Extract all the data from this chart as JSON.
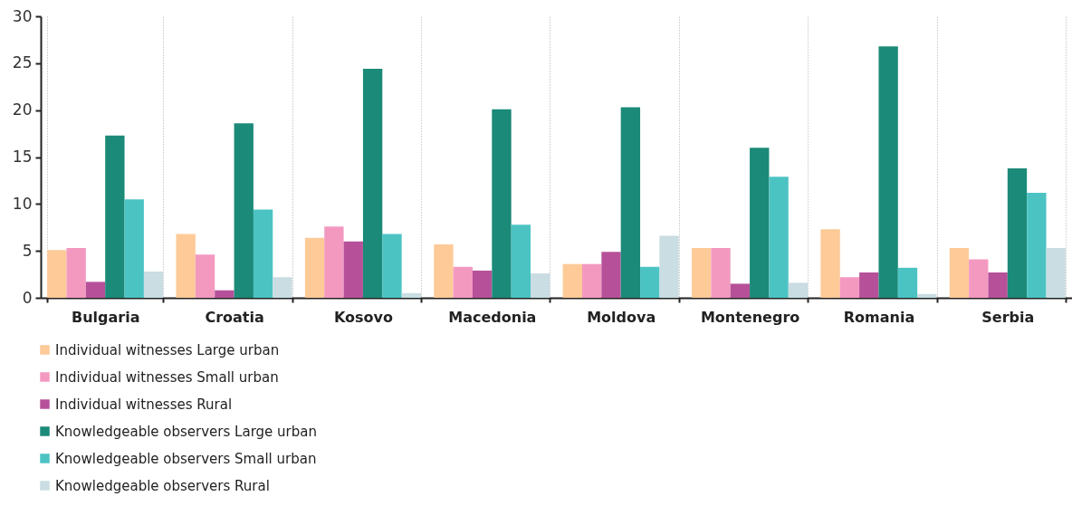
{
  "chart_data": {
    "type": "bar",
    "categories": [
      "Bulgaria",
      "Croatia",
      "Kosovo",
      "Macedonia",
      "Moldova",
      "Montenegro",
      "Romania",
      "Serbia"
    ],
    "series": [
      {
        "name": "Individual witnesses Large urban",
        "color": "#fdca98",
        "values": [
          5.1,
          6.8,
          6.4,
          5.7,
          3.6,
          5.3,
          7.3,
          5.3
        ]
      },
      {
        "name": "Individual witnesses Small urban",
        "color": "#f399c0",
        "values": [
          5.3,
          4.6,
          7.6,
          3.3,
          3.6,
          5.3,
          2.2,
          4.1
        ]
      },
      {
        "name": "Individual witnesses Rural",
        "color": "#b65199",
        "values": [
          1.7,
          0.8,
          6.0,
          2.9,
          4.9,
          1.5,
          2.7,
          2.7
        ]
      },
      {
        "name": "Knowledgeable observers Large urban",
        "color": "#1b8a78",
        "values": [
          17.3,
          18.6,
          24.4,
          20.1,
          20.3,
          16.0,
          26.8,
          13.8
        ]
      },
      {
        "name": "Knowledgeable observers Small urban",
        "color": "#4cc3c3",
        "values": [
          10.5,
          9.4,
          6.8,
          7.8,
          3.3,
          12.9,
          3.2,
          11.2
        ]
      },
      {
        "name": "Knowledgeable observers Rural",
        "color": "#c9dde2",
        "values": [
          2.8,
          2.2,
          0.5,
          2.6,
          6.6,
          1.6,
          0.4,
          5.3
        ]
      }
    ],
    "ylim": [
      0,
      30
    ],
    "yticks": [
      0,
      5,
      10,
      15,
      20,
      25,
      30
    ],
    "grid": "x",
    "legend": "bottom left"
  }
}
